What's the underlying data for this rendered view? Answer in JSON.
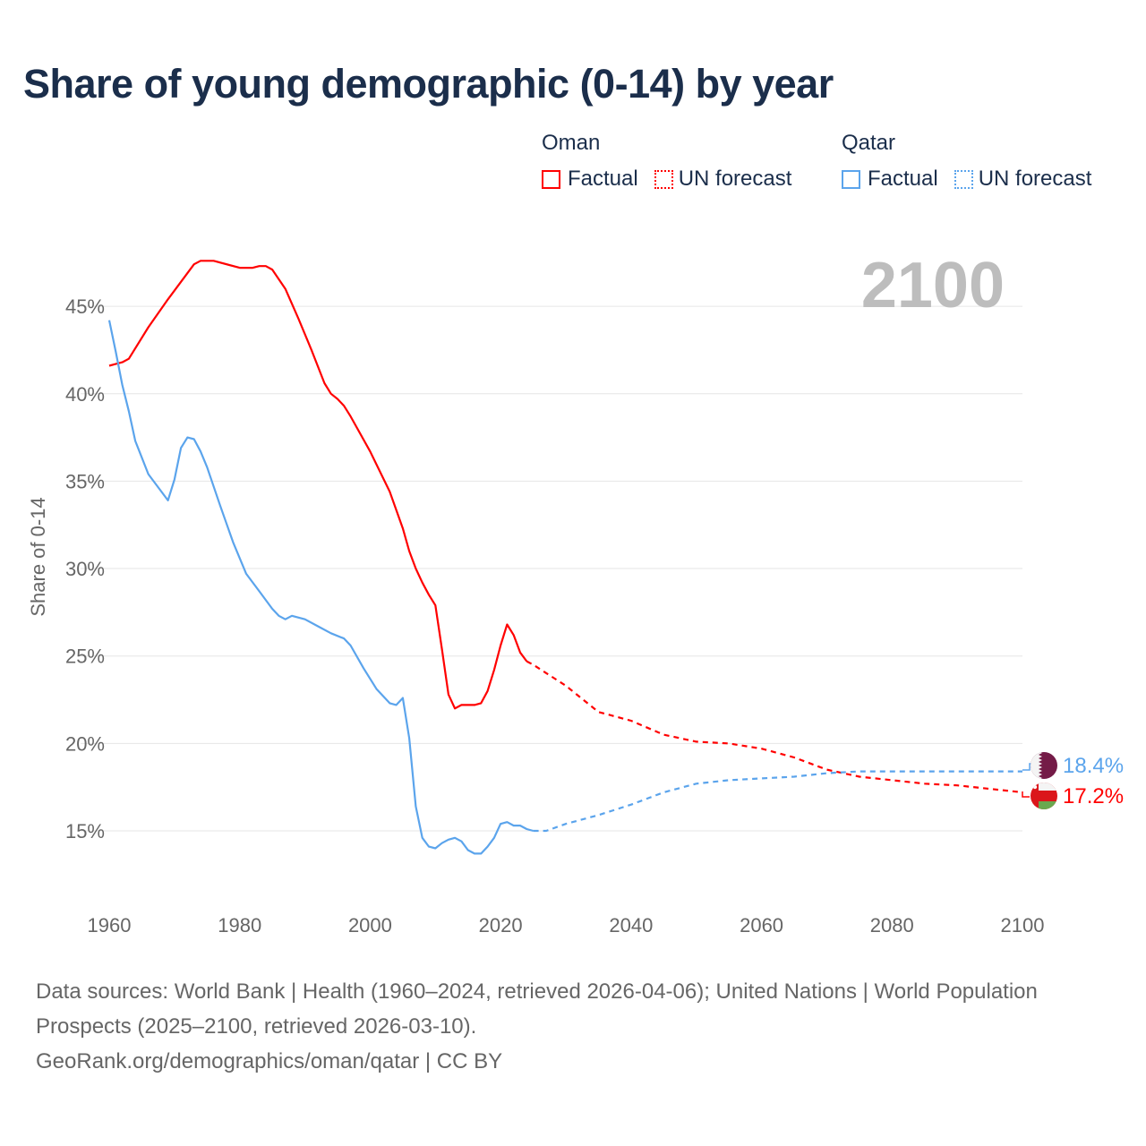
{
  "title": "Share of young demographic (0-14) by year",
  "year_label": "2100",
  "legend": {
    "groups": [
      {
        "country": "Oman",
        "factual": "Factual",
        "forecast": "UN forecast",
        "color": "#ff0000"
      },
      {
        "country": "Qatar",
        "factual": "Factual",
        "forecast": "UN forecast",
        "color": "#5ba4ec"
      }
    ]
  },
  "end_labels": {
    "qatar": "18.4%",
    "oman": "17.2%"
  },
  "footer": {
    "line1": "Data sources: World Bank | Health (1960–2024, retrieved 2026-04-06); United Nations | World Population Prospects (2025–2100, retrieved 2026-03-10).",
    "line2": "GeoRank.org/demographics/oman/qatar | CC BY"
  },
  "chart_data": {
    "type": "line",
    "title": "Share of young demographic (0-14) by year",
    "xlabel": "",
    "ylabel": "Share of 0-14",
    "xlim": [
      1960,
      2100
    ],
    "ylim": [
      11,
      49
    ],
    "x_ticks": [
      1960,
      1980,
      2000,
      2020,
      2040,
      2060,
      2080,
      2100
    ],
    "x_tick_labels": [
      "1960",
      "1980",
      "2000",
      "2020",
      "2040",
      "2060",
      "2080",
      "2100"
    ],
    "y_ticks": [
      15,
      20,
      25,
      30,
      35,
      40,
      45
    ],
    "y_tick_labels": [
      "15%",
      "20%",
      "25%",
      "30%",
      "35%",
      "40%",
      "45%"
    ],
    "grid": true,
    "legend_position": "top-right",
    "series": [
      {
        "name": "Oman Factual",
        "color": "#ff0000",
        "dashed": false,
        "x": [
          1960,
          1962,
          1963,
          1966,
          1969,
          1971,
          1973,
          1974,
          1976,
          1980,
          1982,
          1983,
          1984,
          1985,
          1987,
          1989,
          1991,
          1993,
          1994,
          1995,
          1996,
          1997,
          2000,
          2003,
          2005,
          2006,
          2007,
          2008,
          2009,
          2010,
          2011,
          2012,
          2013,
          2014,
          2015,
          2016,
          2017,
          2018,
          2019,
          2020,
          2021,
          2022,
          2023,
          2024
        ],
        "y": [
          41.6,
          41.8,
          42.0,
          43.8,
          45.4,
          46.4,
          47.4,
          47.6,
          47.6,
          47.2,
          47.2,
          47.3,
          47.3,
          47.1,
          46.0,
          44.3,
          42.5,
          40.6,
          40.0,
          39.7,
          39.3,
          38.7,
          36.7,
          34.4,
          32.3,
          31.0,
          30.0,
          29.2,
          28.5,
          27.9,
          25.4,
          22.8,
          22.0,
          22.2,
          22.2,
          22.2,
          22.3,
          23.0,
          24.2,
          25.6,
          26.8,
          26.2,
          25.2,
          24.7
        ]
      },
      {
        "name": "Oman UN forecast",
        "color": "#ff0000",
        "dashed": true,
        "x": [
          2024,
          2025,
          2030,
          2035,
          2040,
          2045,
          2050,
          2055,
          2060,
          2065,
          2070,
          2075,
          2080,
          2085,
          2090,
          2095,
          2100
        ],
        "y": [
          24.7,
          24.5,
          23.3,
          21.8,
          21.3,
          20.5,
          20.1,
          20.0,
          19.7,
          19.2,
          18.5,
          18.1,
          17.9,
          17.7,
          17.6,
          17.4,
          17.2
        ]
      },
      {
        "name": "Qatar Factual",
        "color": "#5ba4ec",
        "dashed": false,
        "x": [
          1960,
          1961,
          1962,
          1963,
          1964,
          1966,
          1968,
          1969,
          1970,
          1971,
          1972,
          1973,
          1974,
          1975,
          1977,
          1979,
          1981,
          1983,
          1985,
          1986,
          1987,
          1988,
          1990,
          1992,
          1994,
          1996,
          1997,
          1999,
          2001,
          2003,
          2004,
          2005,
          2006,
          2007,
          2008,
          2009,
          2010,
          2011,
          2012,
          2013,
          2014,
          2015,
          2016,
          2017,
          2018,
          2019,
          2020,
          2021,
          2022,
          2023,
          2024,
          2025
        ],
        "y": [
          44.2,
          42.4,
          40.5,
          39.0,
          37.3,
          35.4,
          34.4,
          33.9,
          35.1,
          36.9,
          37.5,
          37.4,
          36.7,
          35.8,
          33.6,
          31.5,
          29.7,
          28.7,
          27.7,
          27.3,
          27.1,
          27.3,
          27.1,
          26.7,
          26.3,
          26.0,
          25.6,
          24.3,
          23.1,
          22.3,
          22.2,
          22.6,
          20.3,
          16.4,
          14.6,
          14.1,
          14.0,
          14.3,
          14.5,
          14.6,
          14.4,
          13.9,
          13.7,
          13.7,
          14.1,
          14.6,
          15.4,
          15.5,
          15.3,
          15.3,
          15.1,
          15.0
        ]
      },
      {
        "name": "Qatar UN forecast",
        "color": "#5ba4ec",
        "dashed": true,
        "x": [
          2025,
          2027,
          2030,
          2035,
          2040,
          2045,
          2050,
          2055,
          2060,
          2065,
          2070,
          2075,
          2080,
          2090,
          2100
        ],
        "y": [
          15.0,
          15.0,
          15.4,
          15.9,
          16.5,
          17.2,
          17.7,
          17.9,
          18.0,
          18.1,
          18.3,
          18.4,
          18.4,
          18.4,
          18.4
        ]
      }
    ]
  }
}
